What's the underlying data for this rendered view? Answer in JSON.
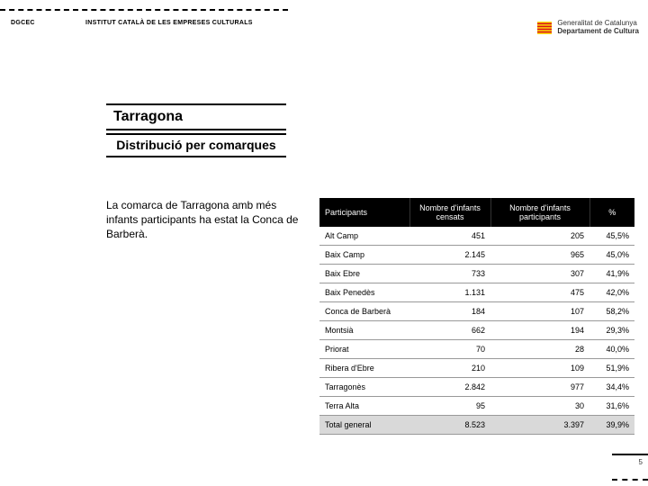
{
  "header": {
    "left": "DGCEC",
    "center": "INSTITUT CATALÀ DE LES EMPRESES CULTURALS",
    "gencat_line1": "Generalitat de Catalunya",
    "gencat_line2": "Departament de Cultura"
  },
  "title": "Tarragona",
  "subtitle": "Distribució per comarques",
  "body": "La comarca de Tarragona amb més infants participants ha estat la Conca de Barberà.",
  "table": {
    "headers": [
      "Participants",
      "Nombre d'infants censats",
      "Nombre d'infants participants",
      "%"
    ],
    "rows": [
      {
        "c0": "Alt Camp",
        "c1": "451",
        "c2": "205",
        "c3": "45,5%"
      },
      {
        "c0": "Baix Camp",
        "c1": "2.145",
        "c2": "965",
        "c3": "45,0%"
      },
      {
        "c0": "Baix Ebre",
        "c1": "733",
        "c2": "307",
        "c3": "41,9%"
      },
      {
        "c0": "Baix Penedès",
        "c1": "1.131",
        "c2": "475",
        "c3": "42,0%"
      },
      {
        "c0": "Conca de Barberà",
        "c1": "184",
        "c2": "107",
        "c3": "58,2%"
      },
      {
        "c0": "Montsià",
        "c1": "662",
        "c2": "194",
        "c3": "29,3%"
      },
      {
        "c0": "Priorat",
        "c1": "70",
        "c2": "28",
        "c3": "40,0%"
      },
      {
        "c0": "Ribera d'Ebre",
        "c1": "210",
        "c2": "109",
        "c3": "51,9%"
      },
      {
        "c0": "Tarragonès",
        "c1": "2.842",
        "c2": "977",
        "c3": "34,4%"
      },
      {
        "c0": "Terra Alta",
        "c1": "95",
        "c2": "30",
        "c3": "31,6%"
      }
    ],
    "total": {
      "c0": "Total general",
      "c1": "8.523",
      "c2": "3.397",
      "c3": "39,9%"
    }
  },
  "page_number": "5",
  "colors": {
    "senyera_red": "#da121a",
    "senyera_yellow": "#fcdd09"
  }
}
